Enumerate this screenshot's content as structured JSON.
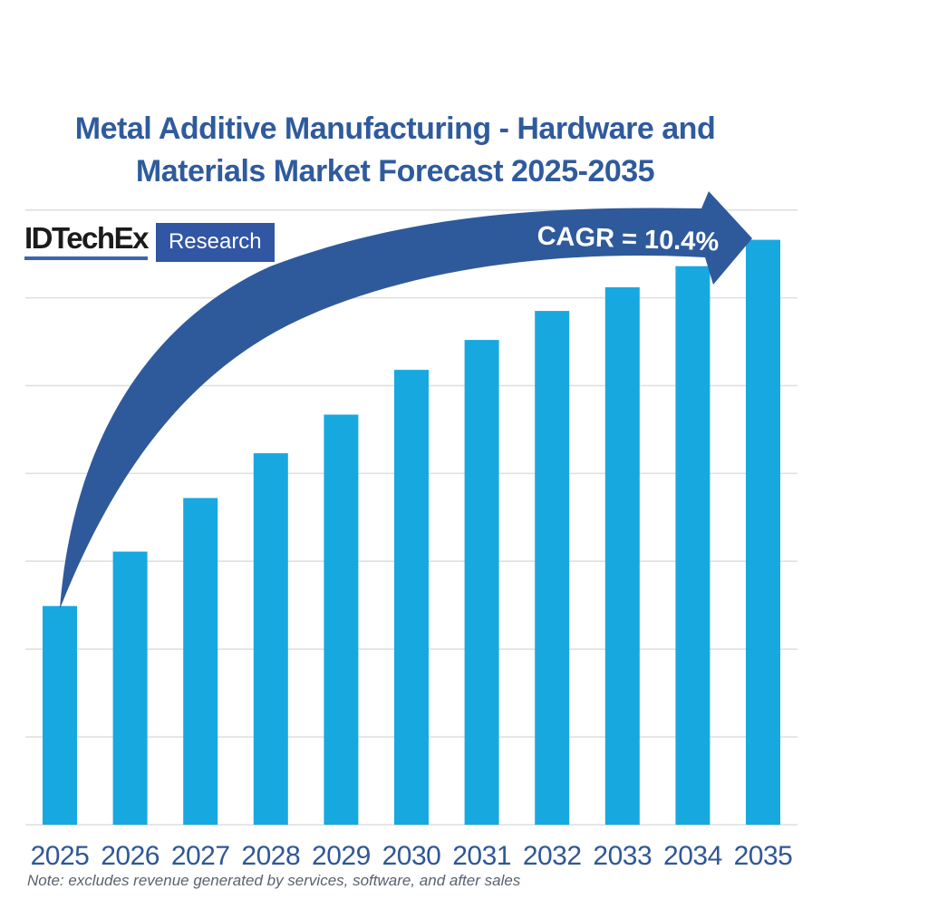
{
  "page": {
    "background": "#ffffff"
  },
  "title": {
    "line1": "Metal Additive Manufacturing - Hardware and",
    "line2": "Materials Market Forecast 2025-2035",
    "color": "#2F5B9D"
  },
  "logo": {
    "brand": "IDTechEx",
    "suffix": "Research",
    "underline_color": "#3A67AE",
    "box_color": "#3056A4"
  },
  "chart_data": {
    "type": "bar",
    "title": "Metal Additive Manufacturing - Hardware and Materials Market Forecast 2025-2035",
    "categories": [
      "2025",
      "2026",
      "2027",
      "2028",
      "2029",
      "2030",
      "2031",
      "2032",
      "2033",
      "2034",
      "2035"
    ],
    "values_gridline_units": [
      2.49,
      3.11,
      3.72,
      4.23,
      4.67,
      5.18,
      5.52,
      5.85,
      6.12,
      6.36,
      6.66
    ],
    "xlabel": "",
    "ylabel": "",
    "ylim": [
      0,
      7
    ],
    "yaxis_labels_visible": false,
    "grid_on": true,
    "gridline_color": "#DEDEDE",
    "bar_color": "#18A8E0",
    "x_tick_color": "#2F5796",
    "annotation": {
      "label": "CAGR = 10.4%",
      "arrow_color": "#2E5A9C",
      "text_color": "#FFFFFF"
    }
  },
  "note": {
    "text": "Note: excludes revenue generated by services, software, and after sales",
    "color": "#5A6170"
  }
}
